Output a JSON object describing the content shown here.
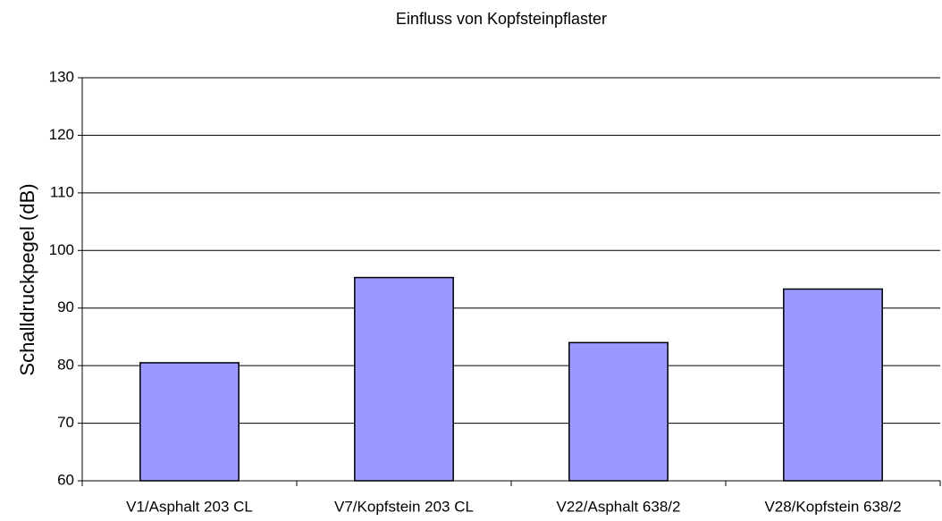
{
  "chart_data": {
    "type": "bar",
    "title": "Einfluss von Kopfsteinpflaster",
    "y_label": "Schalldruckpegel (dB)",
    "categories": [
      "V1/Asphalt 203 CL",
      "V7/Kopfstein 203 CL",
      "V22/Asphalt 638/2",
      "V28/Kopfstein 638/2"
    ],
    "values": [
      80.5,
      95.3,
      84,
      93.3
    ],
    "color": "#9999ff",
    "ylim": [
      60,
      130
    ],
    "yticks": [
      60,
      70,
      80,
      90,
      100,
      110,
      120,
      130
    ],
    "grid": true
  }
}
